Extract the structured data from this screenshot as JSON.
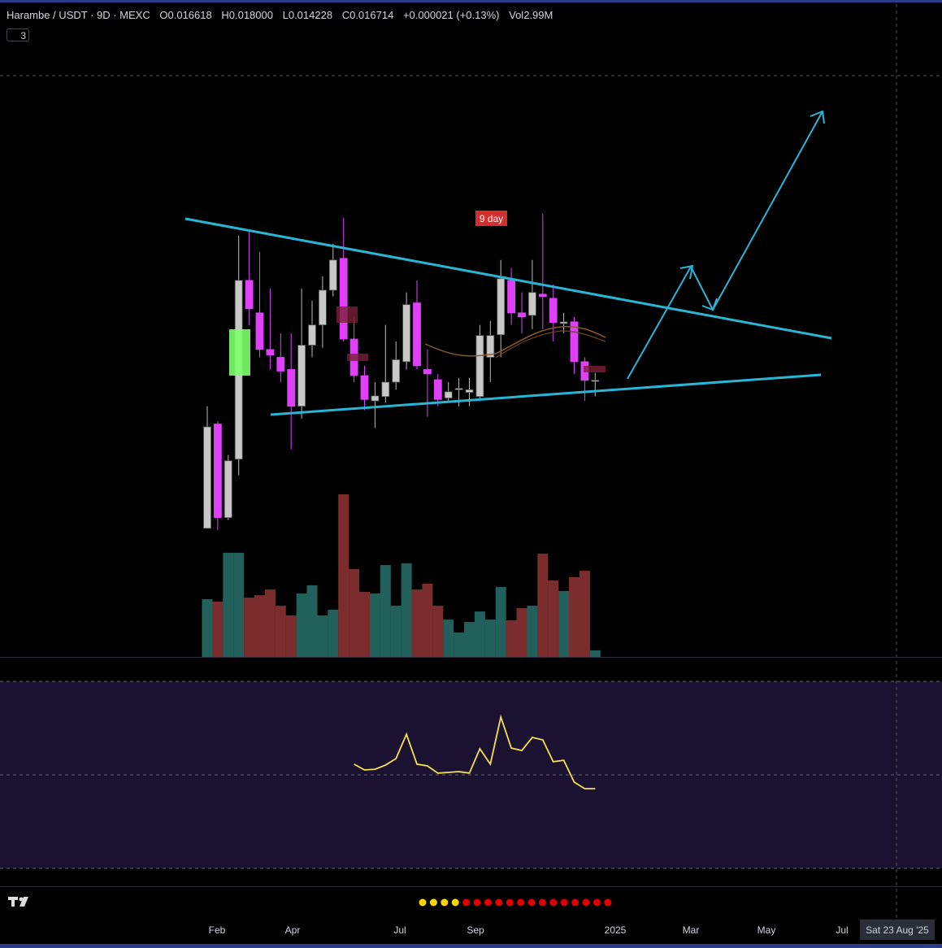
{
  "header": {
    "symbol": "Harambe / USDT · 9D · MEXC",
    "o_label": "O",
    "open": "0.016618",
    "h_label": "H",
    "high": "0.018000",
    "l_label": "L",
    "low": "0.014228",
    "c_label": "C",
    "close": "0.016714",
    "change": "+0.000021 (+0.13%)",
    "vol_label": "Vol",
    "volume": "2.99M",
    "indicator_count": "3"
  },
  "annotation": "9 day",
  "chart_data": {
    "type": "candlestick",
    "log_scale": true,
    "ylim": [
      0.00106,
      0.71
    ],
    "up_color": "#c8c8c8",
    "down_color": "#e040fb",
    "open": [
      0.00382,
      0.0108,
      0.00425,
      0.00761,
      0.0452,
      0.0327,
      0.0227,
      0.021,
      0.0186,
      0.0129,
      0.0237,
      0.029,
      0.041,
      0.0563,
      0.0252,
      0.0175,
      0.0136,
      0.0142,
      0.0164,
      0.0201,
      0.0361,
      0.0186,
      0.0168,
      0.014,
      0.0152,
      0.0148,
      0.0142,
      0.021,
      0.0263,
      0.0452,
      0.0327,
      0.0319,
      0.0394,
      0.0378,
      0.0294,
      0.0299,
      0.0201,
      0.016618
    ],
    "high": [
      0.0129,
      0.0111,
      0.00793,
      0.0706,
      0.0735,
      0.0601,
      0.0417,
      0.0267,
      0.0267,
      0.0417,
      0.0369,
      0.0471,
      0.0651,
      0.0844,
      0.0314,
      0.0193,
      0.0164,
      0.029,
      0.0246,
      0.0401,
      0.0452,
      0.0227,
      0.0178,
      0.0164,
      0.0171,
      0.0171,
      0.029,
      0.0302,
      0.0554,
      0.0511,
      0.0401,
      0.0554,
      0.0879,
      0.0434,
      0.0327,
      0.0314,
      0.021,
      0.018
    ],
    "low": [
      0.00382,
      0.00376,
      0.00415,
      0.00648,
      0.029,
      0.021,
      0.0186,
      0.0164,
      0.00839,
      0.0114,
      0.021,
      0.0231,
      0.0385,
      0.0246,
      0.0164,
      0.0124,
      0.0104,
      0.0134,
      0.0152,
      0.0186,
      0.0186,
      0.0116,
      0.0129,
      0.0134,
      0.0129,
      0.0129,
      0.0136,
      0.0164,
      0.021,
      0.029,
      0.0267,
      0.0278,
      0.0278,
      0.0246,
      0.0267,
      0.0178,
      0.0136,
      0.014228
    ],
    "close": [
      0.0105,
      0.00425,
      0.00749,
      0.0452,
      0.0341,
      0.0227,
      0.0215,
      0.0183,
      0.0129,
      0.0237,
      0.029,
      0.041,
      0.0554,
      0.0252,
      0.0175,
      0.0138,
      0.0143,
      0.0164,
      0.0205,
      0.0355,
      0.0193,
      0.0178,
      0.0138,
      0.0149,
      0.0154,
      0.0152,
      0.0261,
      0.0261,
      0.046,
      0.0327,
      0.0314,
      0.0401,
      0.0385,
      0.0297,
      0.0299,
      0.0201,
      0.0167,
      0.016714
    ],
    "volume": [
      26300000,
      25200000,
      47400000,
      47400000,
      27000000,
      28100000,
      30700000,
      23300000,
      18900000,
      28900000,
      32600000,
      18900000,
      21500000,
      74000000,
      40000000,
      29600000,
      28900000,
      41800000,
      23300000,
      42600000,
      30700000,
      33300000,
      23300000,
      17000000,
      11100000,
      15900000,
      20700000,
      17000000,
      31800000,
      16700000,
      22200000,
      23300000,
      47000000,
      34800000,
      30000000,
      36300000,
      39200000,
      2990000
    ],
    "vlim": [
      0,
      297100000
    ],
    "volume_up_color": "#22605c",
    "volume_down_color": "#7b2c2c",
    "indicator": {
      "values": [
        null,
        null,
        null,
        null,
        null,
        null,
        null,
        null,
        null,
        null,
        null,
        null,
        null,
        null,
        55.7,
        52.6,
        53.0,
        55.2,
        58.7,
        71.7,
        55.7,
        54.8,
        50.9,
        51.3,
        51.7,
        50.9,
        63.9,
        55.7,
        80.9,
        64.3,
        63.0,
        70.0,
        68.7,
        57.0,
        57.8,
        46.1,
        42.6,
        42.6
      ],
      "ylim": [
        0,
        100
      ],
      "levels": [
        0,
        50,
        100
      ],
      "color": "#f5e050"
    }
  },
  "time_axis": {
    "labels": [
      "Feb",
      "Apr",
      "Jul",
      "Sep",
      "2025",
      "Mar",
      "May",
      "Jul"
    ],
    "crosshair": "Sat 23 Aug '25"
  }
}
